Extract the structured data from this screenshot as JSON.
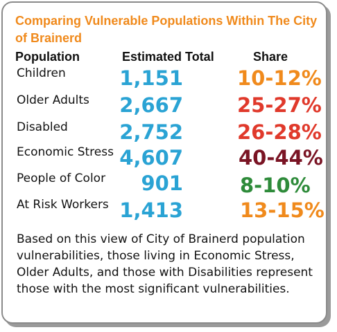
{
  "title": "Comparing Vulnerable Populations Within The City of Brainerd",
  "headers": {
    "population": "Population",
    "total": "Estimated Total",
    "share": "Share"
  },
  "rows": [
    {
      "label": "Children",
      "total": "1,151",
      "share": "10-12%",
      "share_color": "#f08a1c"
    },
    {
      "label": "Older Adults",
      "total": "2,667",
      "share": "25-27%",
      "share_color": "#e0392b"
    },
    {
      "label": "Disabled",
      "total": "2,752",
      "share": "26-28%",
      "share_color": "#e0392b"
    },
    {
      "label": "Economic Stress",
      "total": "4,607",
      "share": "40-44%",
      "share_color": "#7a1424"
    },
    {
      "label": "People of Color",
      "total": "901",
      "share": "8-10%",
      "share_color": "#2e8b3a"
    },
    {
      "label": "At Risk Workers",
      "total": "1,413",
      "share": "13-15%",
      "share_color": "#f08a1c"
    }
  ],
  "description": "Based on this view of City of Brainerd population vulnerabilities, those living in Economic Stress, Older Adults, and those with Disabilities represent those with the most significant vulnerabilities.",
  "colors": {
    "title": "#f08a1c",
    "total": "#2aa3d4",
    "border": "#8a8a8a"
  }
}
